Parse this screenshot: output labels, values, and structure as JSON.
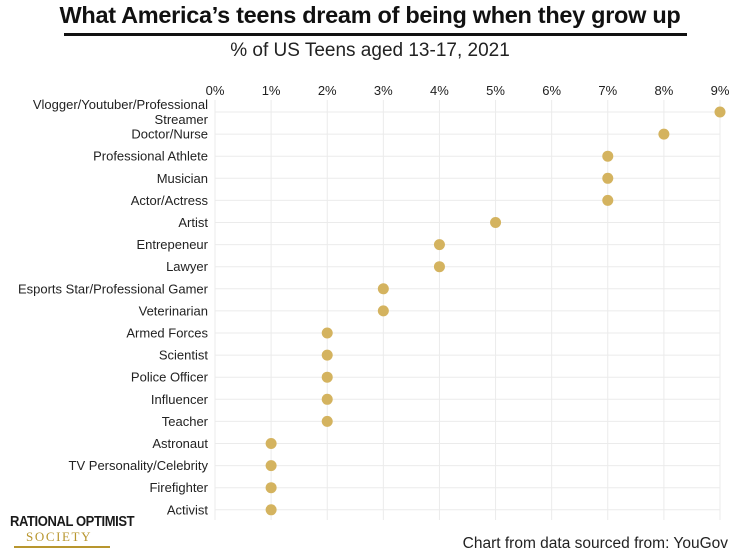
{
  "header": {
    "title": "What America’s teens dream of being when they grow up",
    "subtitle": "% of US Teens aged 13-17, 2021"
  },
  "chart_data": {
    "type": "scatter",
    "title": "What America’s teens dream of being when they grow up",
    "subtitle": "% of US Teens aged 13-17, 2021",
    "xlabel": "",
    "ylabel": "",
    "xlim": [
      0,
      9
    ],
    "x_ticks": [
      "0%",
      "1%",
      "2%",
      "3%",
      "4%",
      "5%",
      "6%",
      "7%",
      "8%",
      "9%"
    ],
    "x_axis_position": "top",
    "grid": true,
    "categories": [
      [
        "Vlogger/Youtuber/Professional",
        "Streamer"
      ],
      [
        "Doctor/Nurse"
      ],
      [
        "Professional Athlete"
      ],
      [
        "Musician"
      ],
      [
        "Actor/Actress"
      ],
      [
        "Artist"
      ],
      [
        "Entrepeneur"
      ],
      [
        "Lawyer"
      ],
      [
        "Esports Star/Professional Gamer"
      ],
      [
        "Veterinarian"
      ],
      [
        "Armed Forces"
      ],
      [
        "Scientist"
      ],
      [
        "Police Officer"
      ],
      [
        "Influencer"
      ],
      [
        "Teacher"
      ],
      [
        "Astronaut"
      ],
      [
        "TV Personality/Celebrity"
      ],
      [
        "Firefighter"
      ],
      [
        "Activist"
      ]
    ],
    "values": [
      9,
      8,
      7,
      7,
      7,
      5,
      4,
      4,
      3,
      3,
      2,
      2,
      2,
      2,
      2,
      1,
      1,
      1,
      1
    ],
    "unit": "%"
  },
  "colors": {
    "dot": "#d4b35f",
    "grid": "#ebebeb",
    "text": "#222222",
    "logo_accent": "#b8962e"
  },
  "logo": {
    "line1": "RATIONAL OPTIMIST",
    "line2": "SOCIETY"
  },
  "footer": {
    "source": "Chart from data sourced from: YouGov"
  }
}
